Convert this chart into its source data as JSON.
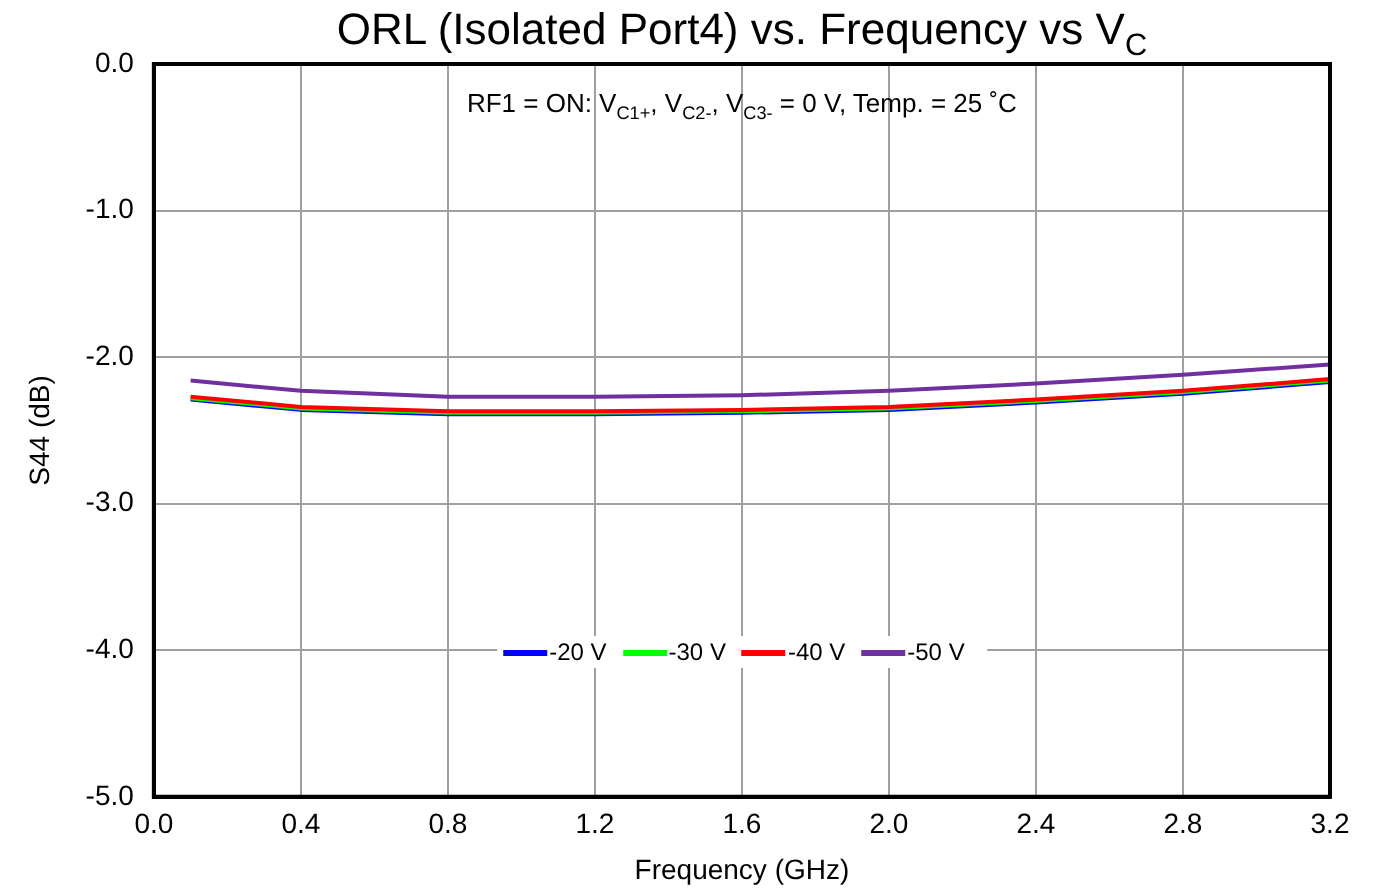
{
  "chart_data": {
    "type": "line",
    "title": "ORL (Isolated Port4) vs. Frequency vs V$_{C}$",
    "annotations": [
      "RF1 = ON: V$_{C1+}$, V$_{C2-}$, V$_{C3-}$ = 0 V, Temp. = 25 ˚C"
    ],
    "xlabel": "Frequency (GHz)",
    "ylabel": "S44 (dB)",
    "x": [
      0.1,
      0.4,
      0.8,
      1.2,
      1.6,
      2.0,
      2.4,
      2.8,
      3.2
    ],
    "series": [
      {
        "name": "-20 V",
        "color": "#0000ff",
        "values": [
          -2.29,
          -2.36,
          -2.39,
          -2.39,
          -2.38,
          -2.36,
          -2.31,
          -2.25,
          -2.17
        ]
      },
      {
        "name": "-30 V",
        "color": "#00ff00",
        "values": [
          -2.28,
          -2.35,
          -2.38,
          -2.38,
          -2.37,
          -2.35,
          -2.3,
          -2.24,
          -2.16
        ]
      },
      {
        "name": "-40 V",
        "color": "#ff0000",
        "values": [
          -2.27,
          -2.34,
          -2.37,
          -2.37,
          -2.36,
          -2.34,
          -2.29,
          -2.23,
          -2.15
        ]
      },
      {
        "name": "-50 V",
        "color": "#7030a0",
        "values": [
          -2.16,
          -2.23,
          -2.27,
          -2.27,
          -2.26,
          -2.23,
          -2.18,
          -2.12,
          -2.05
        ]
      }
    ],
    "xlim": [
      0,
      3.2
    ],
    "xticks": [
      {
        "value": 0,
        "label": "0.0"
      },
      0.4,
      0.8,
      1.2,
      1.6,
      {
        "value": 2,
        "label": "2.0"
      },
      2.4,
      2.8,
      3.2
    ],
    "ylim": [
      -5,
      0
    ],
    "yticks": [
      {
        "value": -5,
        "label": "-5.0"
      },
      {
        "value": -4,
        "label": "-4.0"
      },
      {
        "value": -3,
        "label": "-3.0"
      },
      {
        "value": -2,
        "label": "-2.0"
      },
      {
        "value": -1,
        "label": "-1.0"
      },
      {
        "value": 0,
        "label": "0.0"
      }
    ],
    "grid": true,
    "legend": "bottom",
    "marker": "none",
    "line_style": "solid"
  }
}
